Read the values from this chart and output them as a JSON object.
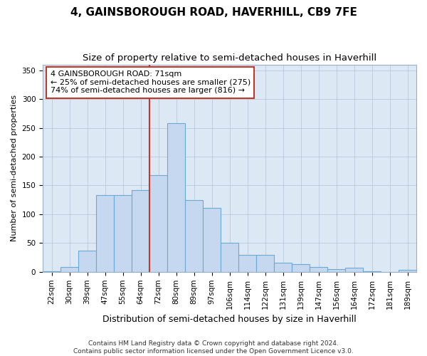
{
  "title": "4, GAINSBOROUGH ROAD, HAVERHILL, CB9 7FE",
  "subtitle": "Size of property relative to semi-detached houses in Haverhill",
  "xlabel": "Distribution of semi-detached houses by size in Haverhill",
  "ylabel": "Number of semi-detached properties",
  "categories": [
    "22sqm",
    "30sqm",
    "39sqm",
    "47sqm",
    "55sqm",
    "64sqm",
    "72sqm",
    "80sqm",
    "89sqm",
    "97sqm",
    "106sqm",
    "114sqm",
    "122sqm",
    "131sqm",
    "139sqm",
    "147sqm",
    "156sqm",
    "164sqm",
    "172sqm",
    "181sqm",
    "189sqm"
  ],
  "values": [
    1,
    8,
    37,
    133,
    133,
    142,
    168,
    258,
    125,
    111,
    50,
    29,
    29,
    16,
    13,
    8,
    5,
    7,
    1,
    0,
    3
  ],
  "bar_color": "#c5d8ef",
  "bar_edge_color": "#6aaad4",
  "plot_bg_color": "#dde8f5",
  "background_color": "#ffffff",
  "grid_color": "#b8c8dc",
  "vline_x": 6,
  "vline_color": "#c0392b",
  "annotation_line1": "4 GAINSBOROUGH ROAD: 71sqm",
  "annotation_line2": "← 25% of semi-detached houses are smaller (275)",
  "annotation_line3": "74% of semi-detached houses are larger (816) →",
  "annotation_box_color": "#ffffff",
  "annotation_border_color": "#c0392b",
  "ylim": [
    0,
    360
  ],
  "yticks": [
    0,
    50,
    100,
    150,
    200,
    250,
    300,
    350
  ],
  "footer_line1": "Contains HM Land Registry data © Crown copyright and database right 2024.",
  "footer_line2": "Contains public sector information licensed under the Open Government Licence v3.0.",
  "title_fontsize": 11,
  "subtitle_fontsize": 9.5,
  "xlabel_fontsize": 9,
  "ylabel_fontsize": 8,
  "tick_fontsize": 7.5,
  "annotation_fontsize": 8,
  "footer_fontsize": 6.5
}
